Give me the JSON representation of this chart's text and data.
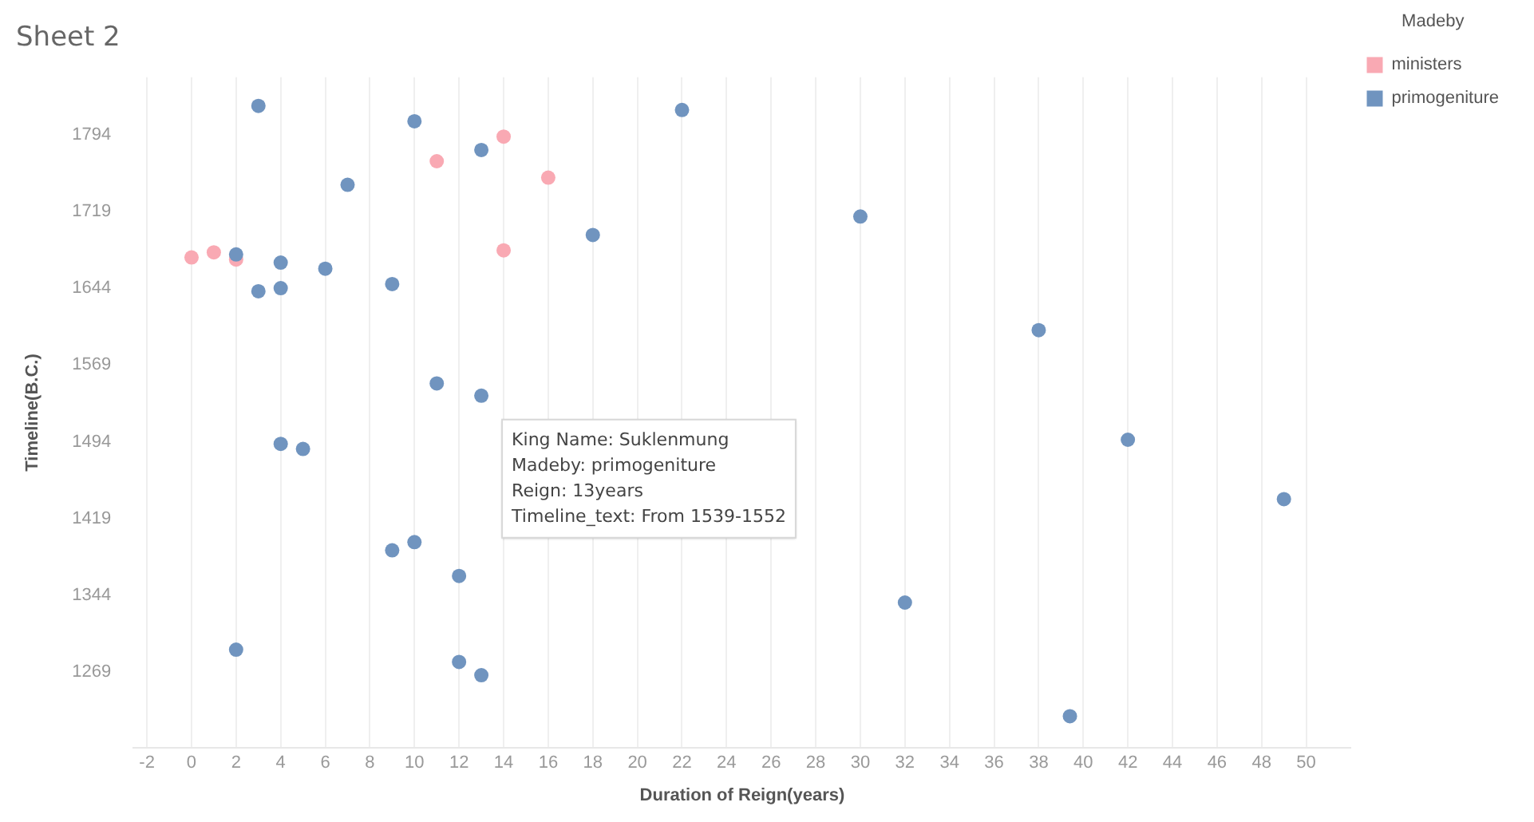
{
  "chart_data": {
    "type": "scatter",
    "title": "Sheet 2",
    "xlabel": "Duration of Reign(years)",
    "ylabel": "Timeline(B.C.)",
    "legend_title": "Madeby",
    "legend": "right",
    "grid": "x",
    "marker": "circle",
    "xlim": [
      -2.6,
      52
    ],
    "xticks": [
      -2,
      0,
      2,
      4,
      6,
      8,
      10,
      12,
      14,
      16,
      18,
      20,
      22,
      24,
      26,
      28,
      30,
      32,
      34,
      36,
      38,
      40,
      42,
      44,
      46,
      48,
      50
    ],
    "ylim": [
      1195,
      1850
    ],
    "yticks": [
      1269,
      1344,
      1419,
      1494,
      1569,
      1644,
      1719,
      1794
    ],
    "series": [
      {
        "name": "ministers",
        "color": "#f9a9b3",
        "x": [
          0,
          1,
          2,
          14,
          11,
          16,
          14
        ],
        "values": [
          1674,
          1679,
          1672,
          1792,
          1768,
          1752,
          1681
        ]
      },
      {
        "name": "primogeniture",
        "color": "#7094bf",
        "x": [
          3,
          10,
          13,
          7,
          18,
          2,
          4,
          6,
          9,
          3,
          4,
          22,
          11,
          13,
          30,
          38,
          4,
          5,
          9,
          10,
          12,
          2,
          12,
          13,
          42,
          49,
          32,
          39.4
        ],
        "values": [
          1822,
          1807,
          1779,
          1745,
          1696,
          1677,
          1669,
          1663,
          1648,
          1641,
          1644,
          1818,
          1551,
          1539,
          1714,
          1603,
          1492,
          1487,
          1388,
          1396,
          1363,
          1291,
          1279,
          1266,
          1496,
          1438,
          1337,
          1226
        ]
      }
    ],
    "annotations": [
      {
        "text": "King Name: Suklenmung",
        "x": 13,
        "y": 1539
      },
      "Madeby: primogeniture",
      "Reign: 13years",
      "Timeline_text: From 1539-1552"
    ]
  }
}
